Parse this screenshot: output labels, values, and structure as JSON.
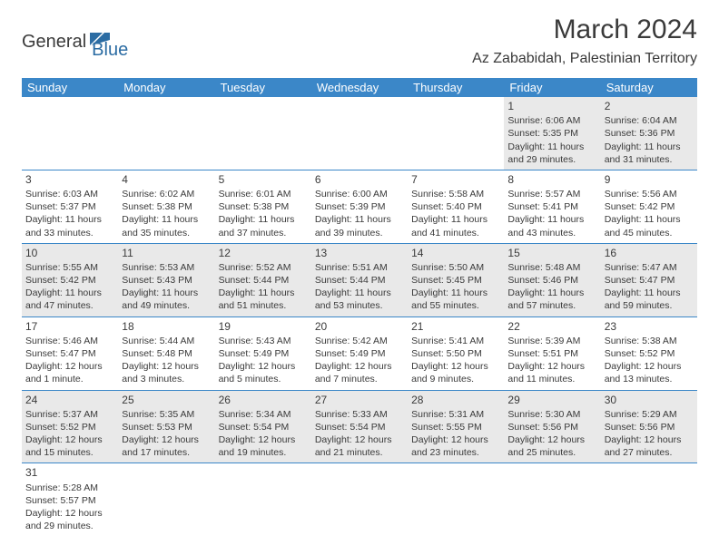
{
  "logo": {
    "general": "General",
    "blue": "Blue"
  },
  "title": "March 2024",
  "location": "Az Zababidah, Palestinian Territory",
  "colors": {
    "headerBg": "#3b87c8",
    "headerText": "#ffffff",
    "rowAlt": "#e9e9e9",
    "text": "#3a3a3a",
    "accent": "#2b6ca3"
  },
  "dayHeaders": [
    "Sunday",
    "Monday",
    "Tuesday",
    "Wednesday",
    "Thursday",
    "Friday",
    "Saturday"
  ],
  "weeks": [
    [
      null,
      null,
      null,
      null,
      null,
      {
        "n": "1",
        "sr": "Sunrise: 6:06 AM",
        "ss": "Sunset: 5:35 PM",
        "d1": "Daylight: 11 hours",
        "d2": "and 29 minutes."
      },
      {
        "n": "2",
        "sr": "Sunrise: 6:04 AM",
        "ss": "Sunset: 5:36 PM",
        "d1": "Daylight: 11 hours",
        "d2": "and 31 minutes."
      }
    ],
    [
      {
        "n": "3",
        "sr": "Sunrise: 6:03 AM",
        "ss": "Sunset: 5:37 PM",
        "d1": "Daylight: 11 hours",
        "d2": "and 33 minutes."
      },
      {
        "n": "4",
        "sr": "Sunrise: 6:02 AM",
        "ss": "Sunset: 5:38 PM",
        "d1": "Daylight: 11 hours",
        "d2": "and 35 minutes."
      },
      {
        "n": "5",
        "sr": "Sunrise: 6:01 AM",
        "ss": "Sunset: 5:38 PM",
        "d1": "Daylight: 11 hours",
        "d2": "and 37 minutes."
      },
      {
        "n": "6",
        "sr": "Sunrise: 6:00 AM",
        "ss": "Sunset: 5:39 PM",
        "d1": "Daylight: 11 hours",
        "d2": "and 39 minutes."
      },
      {
        "n": "7",
        "sr": "Sunrise: 5:58 AM",
        "ss": "Sunset: 5:40 PM",
        "d1": "Daylight: 11 hours",
        "d2": "and 41 minutes."
      },
      {
        "n": "8",
        "sr": "Sunrise: 5:57 AM",
        "ss": "Sunset: 5:41 PM",
        "d1": "Daylight: 11 hours",
        "d2": "and 43 minutes."
      },
      {
        "n": "9",
        "sr": "Sunrise: 5:56 AM",
        "ss": "Sunset: 5:42 PM",
        "d1": "Daylight: 11 hours",
        "d2": "and 45 minutes."
      }
    ],
    [
      {
        "n": "10",
        "sr": "Sunrise: 5:55 AM",
        "ss": "Sunset: 5:42 PM",
        "d1": "Daylight: 11 hours",
        "d2": "and 47 minutes."
      },
      {
        "n": "11",
        "sr": "Sunrise: 5:53 AM",
        "ss": "Sunset: 5:43 PM",
        "d1": "Daylight: 11 hours",
        "d2": "and 49 minutes."
      },
      {
        "n": "12",
        "sr": "Sunrise: 5:52 AM",
        "ss": "Sunset: 5:44 PM",
        "d1": "Daylight: 11 hours",
        "d2": "and 51 minutes."
      },
      {
        "n": "13",
        "sr": "Sunrise: 5:51 AM",
        "ss": "Sunset: 5:44 PM",
        "d1": "Daylight: 11 hours",
        "d2": "and 53 minutes."
      },
      {
        "n": "14",
        "sr": "Sunrise: 5:50 AM",
        "ss": "Sunset: 5:45 PM",
        "d1": "Daylight: 11 hours",
        "d2": "and 55 minutes."
      },
      {
        "n": "15",
        "sr": "Sunrise: 5:48 AM",
        "ss": "Sunset: 5:46 PM",
        "d1": "Daylight: 11 hours",
        "d2": "and 57 minutes."
      },
      {
        "n": "16",
        "sr": "Sunrise: 5:47 AM",
        "ss": "Sunset: 5:47 PM",
        "d1": "Daylight: 11 hours",
        "d2": "and 59 minutes."
      }
    ],
    [
      {
        "n": "17",
        "sr": "Sunrise: 5:46 AM",
        "ss": "Sunset: 5:47 PM",
        "d1": "Daylight: 12 hours",
        "d2": "and 1 minute."
      },
      {
        "n": "18",
        "sr": "Sunrise: 5:44 AM",
        "ss": "Sunset: 5:48 PM",
        "d1": "Daylight: 12 hours",
        "d2": "and 3 minutes."
      },
      {
        "n": "19",
        "sr": "Sunrise: 5:43 AM",
        "ss": "Sunset: 5:49 PM",
        "d1": "Daylight: 12 hours",
        "d2": "and 5 minutes."
      },
      {
        "n": "20",
        "sr": "Sunrise: 5:42 AM",
        "ss": "Sunset: 5:49 PM",
        "d1": "Daylight: 12 hours",
        "d2": "and 7 minutes."
      },
      {
        "n": "21",
        "sr": "Sunrise: 5:41 AM",
        "ss": "Sunset: 5:50 PM",
        "d1": "Daylight: 12 hours",
        "d2": "and 9 minutes."
      },
      {
        "n": "22",
        "sr": "Sunrise: 5:39 AM",
        "ss": "Sunset: 5:51 PM",
        "d1": "Daylight: 12 hours",
        "d2": "and 11 minutes."
      },
      {
        "n": "23",
        "sr": "Sunrise: 5:38 AM",
        "ss": "Sunset: 5:52 PM",
        "d1": "Daylight: 12 hours",
        "d2": "and 13 minutes."
      }
    ],
    [
      {
        "n": "24",
        "sr": "Sunrise: 5:37 AM",
        "ss": "Sunset: 5:52 PM",
        "d1": "Daylight: 12 hours",
        "d2": "and 15 minutes."
      },
      {
        "n": "25",
        "sr": "Sunrise: 5:35 AM",
        "ss": "Sunset: 5:53 PM",
        "d1": "Daylight: 12 hours",
        "d2": "and 17 minutes."
      },
      {
        "n": "26",
        "sr": "Sunrise: 5:34 AM",
        "ss": "Sunset: 5:54 PM",
        "d1": "Daylight: 12 hours",
        "d2": "and 19 minutes."
      },
      {
        "n": "27",
        "sr": "Sunrise: 5:33 AM",
        "ss": "Sunset: 5:54 PM",
        "d1": "Daylight: 12 hours",
        "d2": "and 21 minutes."
      },
      {
        "n": "28",
        "sr": "Sunrise: 5:31 AM",
        "ss": "Sunset: 5:55 PM",
        "d1": "Daylight: 12 hours",
        "d2": "and 23 minutes."
      },
      {
        "n": "29",
        "sr": "Sunrise: 5:30 AM",
        "ss": "Sunset: 5:56 PM",
        "d1": "Daylight: 12 hours",
        "d2": "and 25 minutes."
      },
      {
        "n": "30",
        "sr": "Sunrise: 5:29 AM",
        "ss": "Sunset: 5:56 PM",
        "d1": "Daylight: 12 hours",
        "d2": "and 27 minutes."
      }
    ],
    [
      {
        "n": "31",
        "sr": "Sunrise: 5:28 AM",
        "ss": "Sunset: 5:57 PM",
        "d1": "Daylight: 12 hours",
        "d2": "and 29 minutes."
      },
      null,
      null,
      null,
      null,
      null,
      null
    ]
  ]
}
